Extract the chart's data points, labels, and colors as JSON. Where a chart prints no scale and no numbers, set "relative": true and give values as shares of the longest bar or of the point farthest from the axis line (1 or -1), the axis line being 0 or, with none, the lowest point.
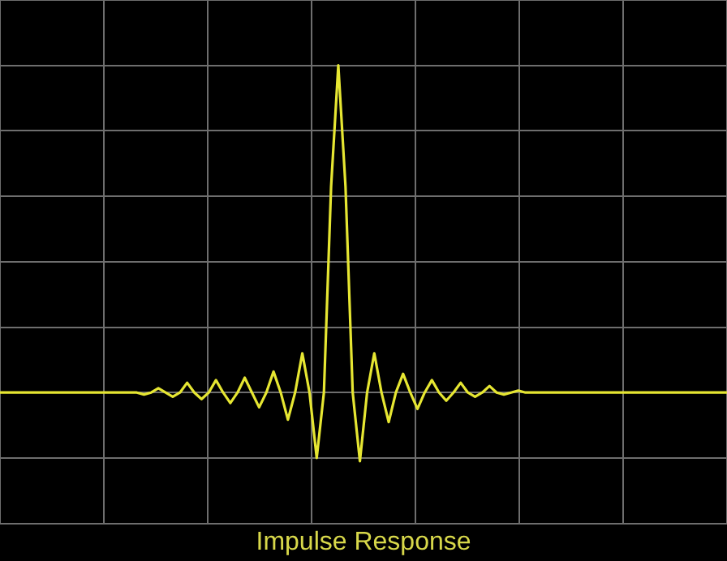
{
  "chart_data": {
    "type": "line",
    "title": "Impulse Response",
    "relative": true,
    "grid": true,
    "legend": false,
    "marker": "none",
    "line_style": "solid",
    "categories": [
      null,
      null,
      null,
      null,
      null,
      null,
      null,
      null,
      null,
      null,
      null,
      null,
      null,
      null,
      null,
      null,
      null,
      null,
      null,
      null,
      null,
      null,
      null,
      null,
      null,
      null,
      null,
      null,
      null,
      null,
      null,
      null,
      null,
      null,
      null,
      null,
      null,
      null,
      null,
      null,
      null,
      null,
      null,
      null,
      null,
      null,
      null,
      null,
      null,
      null,
      null,
      null,
      null,
      null,
      null,
      null,
      null,
      null,
      null,
      null,
      null,
      null,
      null,
      null,
      null,
      null,
      null,
      null,
      null,
      null,
      null,
      null,
      null,
      null,
      null,
      null,
      null,
      null,
      null,
      null,
      null,
      null,
      null,
      null,
      null,
      null,
      null,
      null,
      null,
      null,
      null,
      null,
      null,
      null,
      null,
      null,
      null,
      null,
      null,
      null,
      null,
      null
    ],
    "series": [
      {
        "color": "#e6e632",
        "values": [
          0,
          0,
          0,
          0,
          0,
          0,
          0,
          0,
          0,
          0,
          0,
          0,
          0,
          0,
          0,
          0,
          0,
          0,
          0,
          0,
          -0.006,
          0,
          0.013,
          0,
          -0.013,
          0,
          0.03,
          0,
          -0.02,
          0,
          0.038,
          0,
          -0.032,
          0,
          0.045,
          0,
          -0.045,
          0,
          0.064,
          0,
          -0.083,
          0,
          0.12,
          0,
          -0.2,
          0,
          0.63,
          1,
          0.63,
          0,
          -0.21,
          0,
          0.12,
          0,
          -0.09,
          0,
          0.057,
          0,
          -0.05,
          0,
          0.038,
          0,
          -0.025,
          0,
          0.03,
          0,
          -0.013,
          0,
          0.02,
          0,
          -0.006,
          0,
          0.006,
          0,
          0,
          0,
          0,
          0,
          0,
          0,
          0,
          0,
          0,
          0,
          0,
          0,
          0,
          0,
          0,
          0,
          0,
          0,
          0,
          0,
          0,
          0,
          0,
          0,
          0,
          0,
          0,
          0
        ]
      }
    ]
  }
}
